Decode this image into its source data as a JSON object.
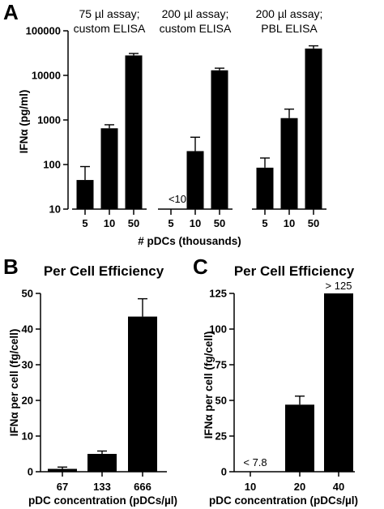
{
  "chart_data": [
    {
      "panel": "A",
      "type": "bar",
      "ylabel": "IFNα (pg/ml)",
      "xlabel": "# pDCs (thousands)",
      "yscale": "log",
      "ylim": [
        10,
        100000
      ],
      "yticks": [
        "10",
        "100",
        "1000",
        "10000",
        "100000"
      ],
      "groups": [
        {
          "label_line1": "75 µl assay;",
          "label_line2": "custom ELISA",
          "categories": [
            "5",
            "10",
            "50"
          ],
          "values": [
            45,
            650,
            28000
          ],
          "errors_upper": [
            90,
            780,
            31000
          ],
          "annotations": []
        },
        {
          "label_line1": "200 µl assay;",
          "label_line2": "custom ELISA",
          "categories": [
            "5",
            "10",
            "50"
          ],
          "values": [
            null,
            200,
            13000
          ],
          "errors_upper": [
            null,
            410,
            14500
          ],
          "annotations": [
            {
              "category_index": 0,
              "text": "<10"
            }
          ]
        },
        {
          "label_line1": "200 µl assay;",
          "label_line2": "PBL ELISA",
          "categories": [
            "5",
            "10",
            "50"
          ],
          "values": [
            85,
            1100,
            40000
          ],
          "errors_upper": [
            140,
            1750,
            46000
          ],
          "annotations": []
        }
      ]
    },
    {
      "panel": "B",
      "type": "bar",
      "title": "Per Cell Efficiency",
      "ylabel": "IFNα per cell (fg/cell)",
      "xlabel": "pDC concentration (pDCs/µl)",
      "ylim": [
        0,
        50
      ],
      "yticks": [
        "0",
        "10",
        "20",
        "30",
        "40",
        "50"
      ],
      "categories": [
        "67",
        "133",
        "666"
      ],
      "values": [
        0.8,
        5.0,
        43.5
      ],
      "errors_upper": [
        1.3,
        5.8,
        48.5
      ],
      "annotations": []
    },
    {
      "panel": "C",
      "type": "bar",
      "title": "Per Cell Efficiency",
      "ylabel": "IFNα per cell (fg/cell)",
      "xlabel": "pDC concentration (pDCs/µl)",
      "ylim": [
        0,
        125
      ],
      "yticks": [
        "0",
        "25",
        "50",
        "75",
        "100",
        "125"
      ],
      "categories": [
        "10",
        "20",
        "40"
      ],
      "values": [
        null,
        47,
        125
      ],
      "errors_upper": [
        null,
        53,
        null
      ],
      "annotations": [
        {
          "category_index": 0,
          "text": "< 7.8"
        },
        {
          "category_index": 2,
          "text": "> 125"
        }
      ]
    }
  ]
}
